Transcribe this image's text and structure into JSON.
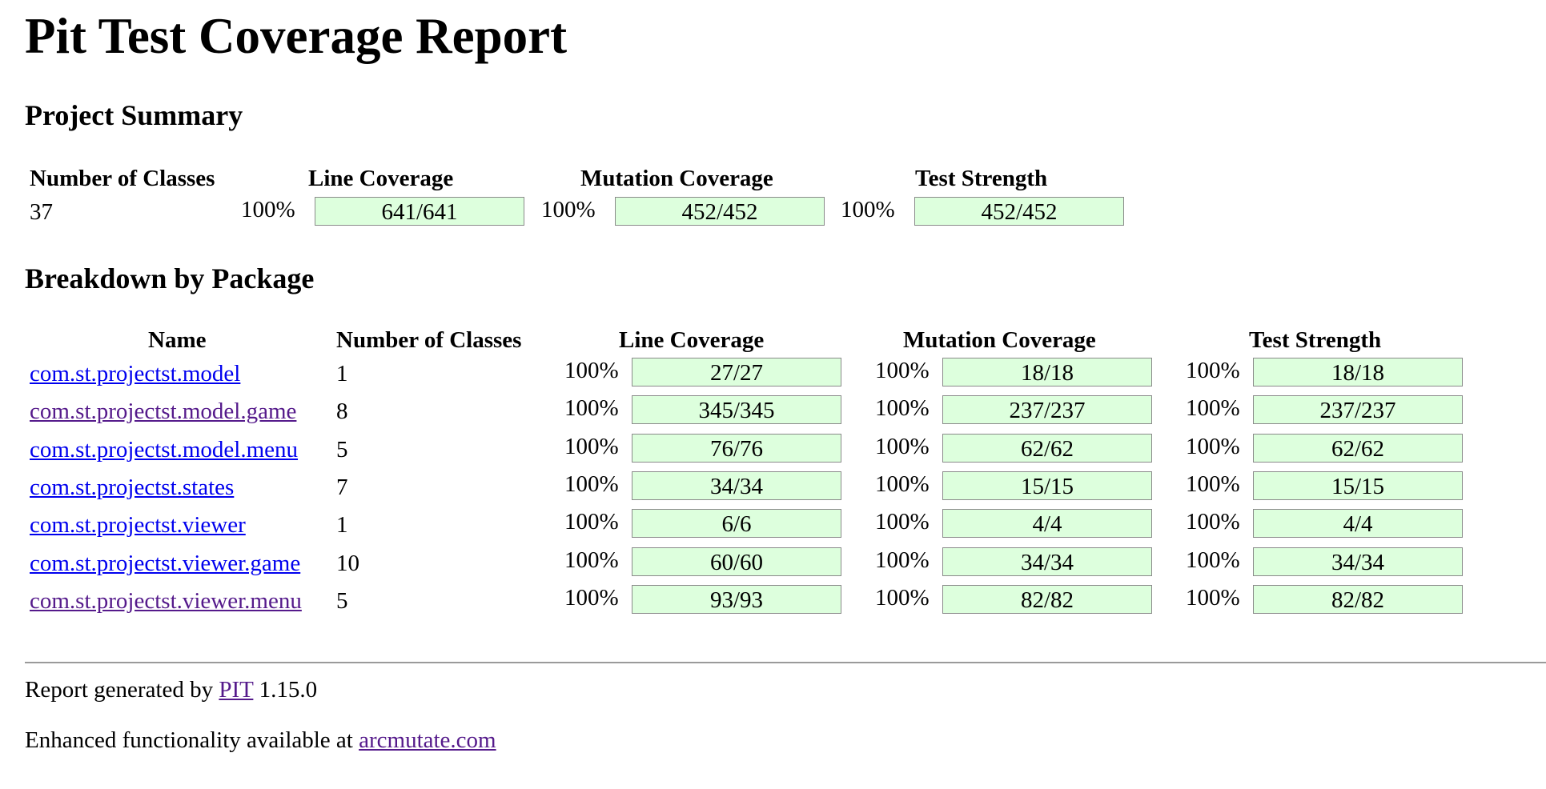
{
  "title": "Pit Test Coverage Report",
  "project_summary": {
    "heading": "Project Summary",
    "headers": {
      "classes": "Number of Classes",
      "line": "Line Coverage",
      "mutation": "Mutation Coverage",
      "strength": "Test Strength"
    },
    "number_of_classes": "37",
    "line": {
      "percent": "100%",
      "ratio": "641/641",
      "fraction": 1.0
    },
    "mutation": {
      "percent": "100%",
      "ratio": "452/452",
      "fraction": 1.0
    },
    "strength": {
      "percent": "100%",
      "ratio": "452/452",
      "fraction": 1.0
    }
  },
  "breakdown": {
    "heading": "Breakdown by Package",
    "headers": {
      "name": "Name",
      "classes": "Number of Classes",
      "line": "Line Coverage",
      "mutation": "Mutation Coverage",
      "strength": "Test Strength"
    },
    "rows": [
      {
        "name": "com.st.projectst.model",
        "visited": false,
        "classes": "1",
        "line_pct": "100%",
        "line": "27/27",
        "line_fraction": 1.0,
        "mutation_pct": "100%",
        "mutation": "18/18",
        "mutation_fraction": 1.0,
        "strength_pct": "100%",
        "strength": "18/18",
        "strength_fraction": 1.0
      },
      {
        "name": "com.st.projectst.model.game",
        "visited": true,
        "classes": "8",
        "line_pct": "100%",
        "line": "345/345",
        "line_fraction": 1.0,
        "mutation_pct": "100%",
        "mutation": "237/237",
        "mutation_fraction": 1.0,
        "strength_pct": "100%",
        "strength": "237/237",
        "strength_fraction": 1.0
      },
      {
        "name": "com.st.projectst.model.menu",
        "visited": false,
        "classes": "5",
        "line_pct": "100%",
        "line": "76/76",
        "line_fraction": 1.0,
        "mutation_pct": "100%",
        "mutation": "62/62",
        "mutation_fraction": 1.0,
        "strength_pct": "100%",
        "strength": "62/62",
        "strength_fraction": 1.0
      },
      {
        "name": "com.st.projectst.states",
        "visited": false,
        "classes": "7",
        "line_pct": "100%",
        "line": "34/34",
        "line_fraction": 1.0,
        "mutation_pct": "100%",
        "mutation": "15/15",
        "mutation_fraction": 1.0,
        "strength_pct": "100%",
        "strength": "15/15",
        "strength_fraction": 1.0
      },
      {
        "name": "com.st.projectst.viewer",
        "visited": false,
        "classes": "1",
        "line_pct": "100%",
        "line": "6/6",
        "line_fraction": 1.0,
        "mutation_pct": "100%",
        "mutation": "4/4",
        "mutation_fraction": 1.0,
        "strength_pct": "100%",
        "strength": "4/4",
        "strength_fraction": 1.0
      },
      {
        "name": "com.st.projectst.viewer.game",
        "visited": false,
        "classes": "10",
        "line_pct": "100%",
        "line": "60/60",
        "line_fraction": 1.0,
        "mutation_pct": "100%",
        "mutation": "34/34",
        "mutation_fraction": 1.0,
        "strength_pct": "100%",
        "strength": "34/34",
        "strength_fraction": 1.0
      },
      {
        "name": "com.st.projectst.viewer.menu",
        "visited": true,
        "classes": "5",
        "line_pct": "100%",
        "line": "93/93",
        "line_fraction": 1.0,
        "mutation_pct": "100%",
        "mutation": "82/82",
        "mutation_fraction": 1.0,
        "strength_pct": "100%",
        "strength": "82/82",
        "strength_fraction": 1.0
      }
    ]
  },
  "footer": {
    "generated_prefix": "Report generated by ",
    "pit_link": "PIT",
    "version": " 1.15.0",
    "enhanced_prefix": "Enhanced functionality available at ",
    "arcmutate_link": "arcmutate.com"
  },
  "colors": {
    "bar_fill": "#ddffdd",
    "bar_border": "#8a8a8a",
    "link": "#0000ee",
    "visited_link": "#551a8b"
  }
}
